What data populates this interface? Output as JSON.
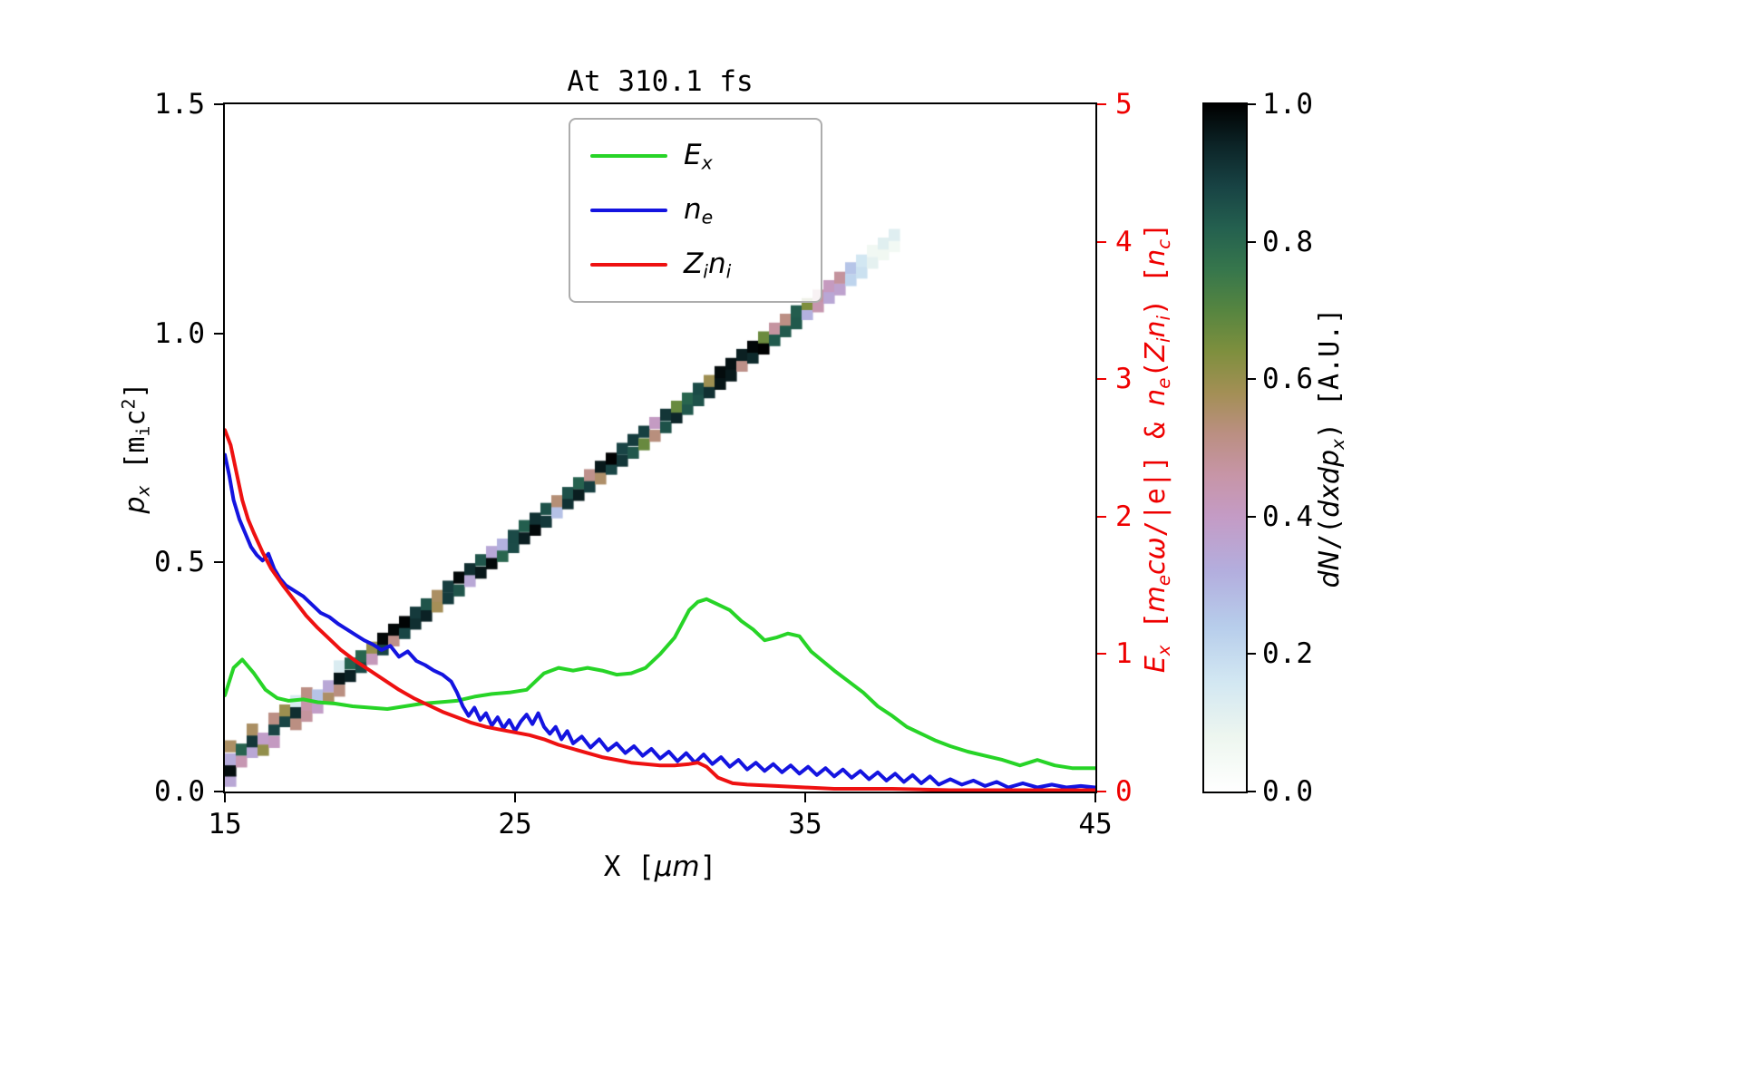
{
  "chart_data": {
    "type": "line+heatmap",
    "title": "At 310.1 fs",
    "x_axis": {
      "label_text": "X [μm]",
      "range": [
        15,
        45
      ],
      "ticks": [
        {
          "v": 15,
          "label": "15"
        },
        {
          "v": 25,
          "label": "25"
        },
        {
          "v": 35,
          "label": "35"
        },
        {
          "v": 45,
          "label": "45"
        }
      ]
    },
    "y_left": {
      "label_text": "p_x [m_i c^2]",
      "range": [
        0,
        1.5
      ],
      "ticks": [
        {
          "v": 0,
          "label": "0.0"
        },
        {
          "v": 0.5,
          "label": "0.5"
        },
        {
          "v": 1.0,
          "label": "1.0"
        },
        {
          "v": 1.5,
          "label": "1.5"
        }
      ]
    },
    "y_right": {
      "label_text": "E_x [m_e cω/|e|] & n_e(Z_i n_i) [n_c]",
      "range": [
        0,
        5
      ],
      "color": "#ee0000",
      "ticks": [
        {
          "v": 0,
          "label": "0"
        },
        {
          "v": 1,
          "label": "1"
        },
        {
          "v": 2,
          "label": "2"
        },
        {
          "v": 3,
          "label": "3"
        },
        {
          "v": 4,
          "label": "4"
        },
        {
          "v": 5,
          "label": "5"
        }
      ]
    },
    "series": [
      {
        "name": "E_x",
        "color": "#27d427",
        "axis": "right",
        "x": [
          15.0,
          15.3,
          15.6,
          16.0,
          16.4,
          16.8,
          17.2,
          17.7,
          18.2,
          18.8,
          19.4,
          20.0,
          20.6,
          21.2,
          21.8,
          22.4,
          23.0,
          23.6,
          24.2,
          24.8,
          25.4,
          26.0,
          26.5,
          27.0,
          27.5,
          28.0,
          28.5,
          29.0,
          29.5,
          30.0,
          30.5,
          31.0,
          31.3,
          31.6,
          32.0,
          32.4,
          32.8,
          33.2,
          33.6,
          34.0,
          34.4,
          34.8,
          35.2,
          35.6,
          36.0,
          36.5,
          37.0,
          37.5,
          38.0,
          38.5,
          39.0,
          39.5,
          40.0,
          40.6,
          41.2,
          41.8,
          42.4,
          43.0,
          43.6,
          44.2,
          45.0
        ],
        "y": [
          0.7,
          0.9,
          0.96,
          0.86,
          0.74,
          0.68,
          0.66,
          0.67,
          0.65,
          0.64,
          0.62,
          0.61,
          0.6,
          0.62,
          0.64,
          0.65,
          0.66,
          0.69,
          0.71,
          0.72,
          0.74,
          0.86,
          0.9,
          0.88,
          0.9,
          0.88,
          0.85,
          0.86,
          0.9,
          1.0,
          1.12,
          1.32,
          1.38,
          1.4,
          1.36,
          1.32,
          1.24,
          1.18,
          1.1,
          1.12,
          1.15,
          1.13,
          1.02,
          0.95,
          0.88,
          0.8,
          0.72,
          0.62,
          0.55,
          0.47,
          0.42,
          0.37,
          0.33,
          0.29,
          0.26,
          0.23,
          0.19,
          0.23,
          0.19,
          0.17,
          0.17
        ]
      },
      {
        "name": "n_e",
        "color": "#1414e0",
        "axis": "right",
        "x": [
          15.0,
          15.15,
          15.3,
          15.5,
          15.7,
          15.9,
          16.1,
          16.3,
          16.5,
          16.7,
          16.9,
          17.1,
          17.4,
          17.7,
          18.0,
          18.3,
          18.6,
          18.9,
          19.2,
          19.5,
          19.8,
          20.1,
          20.4,
          20.7,
          21.0,
          21.3,
          21.6,
          21.9,
          22.2,
          22.5,
          22.8,
          23.0,
          23.2,
          23.4,
          23.6,
          23.8,
          24.0,
          24.2,
          24.4,
          24.6,
          24.8,
          25.0,
          25.2,
          25.4,
          25.6,
          25.8,
          26.0,
          26.2,
          26.4,
          26.6,
          26.8,
          27.0,
          27.3,
          27.6,
          27.9,
          28.2,
          28.5,
          28.8,
          29.1,
          29.4,
          29.7,
          30.0,
          30.3,
          30.6,
          30.9,
          31.2,
          31.5,
          31.8,
          32.1,
          32.4,
          32.7,
          33.0,
          33.3,
          33.6,
          33.9,
          34.2,
          34.5,
          34.8,
          35.1,
          35.4,
          35.7,
          36.0,
          36.3,
          36.6,
          36.9,
          37.2,
          37.5,
          37.8,
          38.1,
          38.4,
          38.7,
          39.0,
          39.3,
          39.6,
          40.0,
          40.4,
          40.8,
          41.2,
          41.6,
          42.0,
          42.5,
          43.0,
          43.5,
          44.0,
          44.5,
          45.0
        ],
        "y": [
          2.45,
          2.3,
          2.12,
          1.98,
          1.88,
          1.78,
          1.72,
          1.68,
          1.73,
          1.62,
          1.55,
          1.5,
          1.46,
          1.42,
          1.36,
          1.3,
          1.27,
          1.22,
          1.18,
          1.14,
          1.1,
          1.07,
          1.03,
          1.06,
          0.98,
          1.02,
          0.95,
          0.92,
          0.88,
          0.85,
          0.8,
          0.72,
          0.62,
          0.55,
          0.61,
          0.52,
          0.57,
          0.48,
          0.54,
          0.46,
          0.52,
          0.44,
          0.51,
          0.56,
          0.49,
          0.57,
          0.47,
          0.42,
          0.47,
          0.38,
          0.44,
          0.35,
          0.4,
          0.32,
          0.38,
          0.3,
          0.35,
          0.28,
          0.33,
          0.26,
          0.31,
          0.24,
          0.29,
          0.22,
          0.28,
          0.21,
          0.27,
          0.2,
          0.25,
          0.18,
          0.23,
          0.16,
          0.21,
          0.15,
          0.2,
          0.14,
          0.19,
          0.13,
          0.18,
          0.12,
          0.17,
          0.11,
          0.16,
          0.1,
          0.15,
          0.09,
          0.14,
          0.08,
          0.13,
          0.07,
          0.12,
          0.06,
          0.11,
          0.05,
          0.09,
          0.05,
          0.08,
          0.04,
          0.07,
          0.03,
          0.06,
          0.03,
          0.05,
          0.03,
          0.04,
          0.03
        ]
      },
      {
        "name": "Z_i n_i",
        "color": "#ee1111",
        "axis": "right",
        "x": [
          15.0,
          15.2,
          15.4,
          15.6,
          15.8,
          16.0,
          16.3,
          16.6,
          17.0,
          17.4,
          17.8,
          18.2,
          18.6,
          19.0,
          19.5,
          20.0,
          20.5,
          21.0,
          21.5,
          22.0,
          22.5,
          23.0,
          23.5,
          24.0,
          24.5,
          25.0,
          25.5,
          26.0,
          26.5,
          27.0,
          27.5,
          28.0,
          28.5,
          29.0,
          29.5,
          30.0,
          30.5,
          31.0,
          31.3,
          31.6,
          32.0,
          32.5,
          33.0,
          34.0,
          35.0,
          36.0,
          38.0,
          40.0,
          42.0,
          45.0
        ],
        "y": [
          2.63,
          2.52,
          2.32,
          2.12,
          1.98,
          1.88,
          1.74,
          1.62,
          1.5,
          1.39,
          1.28,
          1.19,
          1.11,
          1.03,
          0.95,
          0.88,
          0.81,
          0.74,
          0.68,
          0.63,
          0.58,
          0.54,
          0.5,
          0.47,
          0.45,
          0.43,
          0.41,
          0.38,
          0.34,
          0.31,
          0.28,
          0.25,
          0.23,
          0.21,
          0.2,
          0.19,
          0.19,
          0.2,
          0.21,
          0.18,
          0.1,
          0.06,
          0.05,
          0.04,
          0.03,
          0.02,
          0.02,
          0.01,
          0.01,
          0.01
        ]
      }
    ],
    "heatmap": {
      "label_text": "dN/(dxdp_x) [A.U.]",
      "clim": [
        0,
        1
      ],
      "cbar_ticks": [
        {
          "v": 0,
          "label": "0.0"
        },
        {
          "v": 0.2,
          "label": "0.2"
        },
        {
          "v": 0.4,
          "label": "0.4"
        },
        {
          "v": 0.6,
          "label": "0.6"
        },
        {
          "v": 0.8,
          "label": "0.8"
        },
        {
          "v": 1.0,
          "label": "1.0"
        }
      ],
      "colormap_stops": [
        [
          0.0,
          "#ffffff"
        ],
        [
          0.08,
          "#edf6ef"
        ],
        [
          0.16,
          "#d2e7f2"
        ],
        [
          0.24,
          "#b7cdeb"
        ],
        [
          0.32,
          "#b3aede"
        ],
        [
          0.4,
          "#c49bc5"
        ],
        [
          0.46,
          "#c795a7"
        ],
        [
          0.52,
          "#bb8f82"
        ],
        [
          0.58,
          "#a38f55"
        ],
        [
          0.64,
          "#7e8f3e"
        ],
        [
          0.7,
          "#568540"
        ],
        [
          0.76,
          "#36764c"
        ],
        [
          0.82,
          "#24604f"
        ],
        [
          0.88,
          "#184344"
        ],
        [
          0.94,
          "#0c2427"
        ],
        [
          1.0,
          "#000000"
        ]
      ],
      "band": {
        "x_start": 15,
        "x_end": 38,
        "p_start": 0.06,
        "p_end": 1.21,
        "cell_dx": 0.375,
        "cell_dp": 0.025,
        "seed": 77
      }
    }
  },
  "labels": {
    "x_axis": [
      {
        "t": "X [",
        "s": "n"
      },
      {
        "t": "μm",
        "s": "i"
      },
      {
        "t": "]",
        "s": "n"
      }
    ],
    "y_left": [
      {
        "t": "p",
        "s": "i"
      },
      {
        "t": "x",
        "s": "isub"
      },
      {
        "t": " [m",
        "s": "n"
      },
      {
        "t": "i",
        "s": "sub"
      },
      {
        "t": "c",
        "s": "n"
      },
      {
        "t": "2",
        "s": "sup"
      },
      {
        "t": "]",
        "s": "n"
      }
    ],
    "y_right": [
      {
        "t": "E",
        "s": "i"
      },
      {
        "t": "x",
        "s": "isub"
      },
      {
        "t": " [",
        "s": "n"
      },
      {
        "t": "m",
        "s": "i"
      },
      {
        "t": "e",
        "s": "isub"
      },
      {
        "t": "c",
        "s": "i"
      },
      {
        "t": "ω",
        "s": "i"
      },
      {
        "t": "/|e|] & ",
        "s": "n"
      },
      {
        "t": "n",
        "s": "i"
      },
      {
        "t": "e",
        "s": "isub"
      },
      {
        "t": "(",
        "s": "n"
      },
      {
        "t": "Z",
        "s": "i"
      },
      {
        "t": "i",
        "s": "isub"
      },
      {
        "t": "n",
        "s": "i"
      },
      {
        "t": "i",
        "s": "isub"
      },
      {
        "t": ") [",
        "s": "n"
      },
      {
        "t": "n",
        "s": "i"
      },
      {
        "t": "c",
        "s": "isub"
      },
      {
        "t": "]",
        "s": "n"
      }
    ],
    "colorbar": [
      {
        "t": "dN",
        "s": "i"
      },
      {
        "t": "/(",
        "s": "n"
      },
      {
        "t": "dxdp",
        "s": "i"
      },
      {
        "t": "x",
        "s": "isub"
      },
      {
        "t": ") [A.U.]",
        "s": "n"
      }
    ],
    "legend": [
      [
        {
          "t": "E",
          "s": "i"
        },
        {
          "t": "x",
          "s": "isub"
        }
      ],
      [
        {
          "t": "n",
          "s": "i"
        },
        {
          "t": "e",
          "s": "isub"
        }
      ],
      [
        {
          "t": "Z",
          "s": "i"
        },
        {
          "t": "i",
          "s": "isub"
        },
        {
          "t": "n",
          "s": "i"
        },
        {
          "t": "i",
          "s": "isub"
        }
      ]
    ]
  }
}
